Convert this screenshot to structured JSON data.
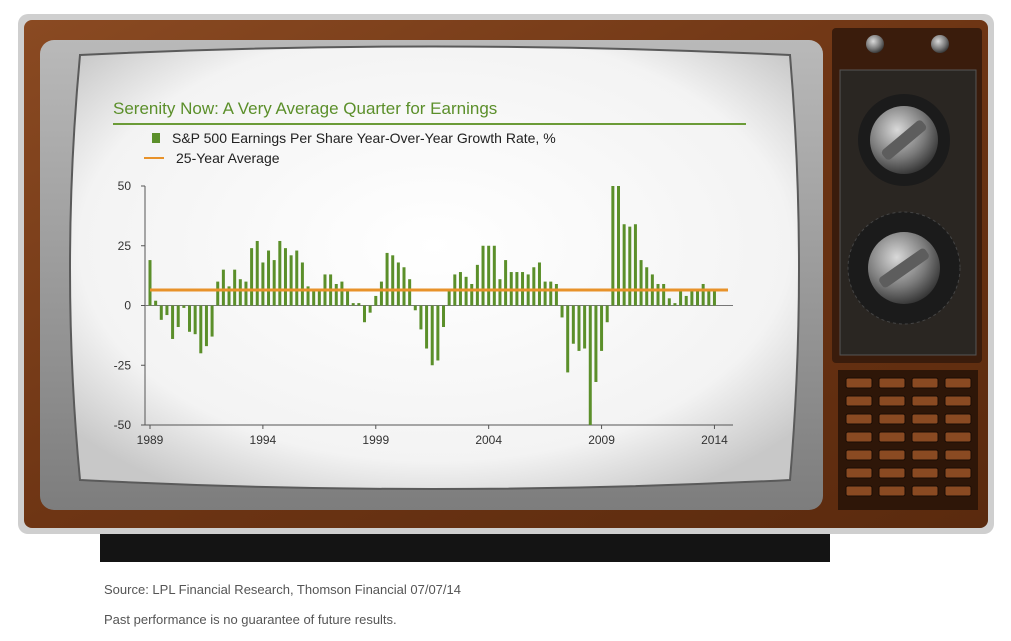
{
  "source_note": "Source: LPL Financial Research, Thomson Financial   07/07/14",
  "disclaimer": "Past performance is no guarantee of future results.",
  "colors": {
    "bar": "#5b8f2a",
    "average": "#e8922a",
    "title": "#5b8f2a",
    "wood": "#7a3d1a"
  },
  "chart_data": {
    "type": "bar",
    "title": "Serenity Now: A Very Average Quarter for Earnings",
    "legend": [
      {
        "label": "S&P 500 Earnings Per Share Year-Over-Year Growth Rate, %",
        "kind": "bar"
      },
      {
        "label": "25-Year Average",
        "kind": "line"
      }
    ],
    "xlabel": "",
    "ylabel": "",
    "ylim": [
      -50,
      50
    ],
    "yticks": [
      50,
      25,
      0,
      -25,
      -50
    ],
    "xticks": [
      1989,
      1994,
      1999,
      2004,
      2009,
      2014
    ],
    "xlim": [
      1989,
      2014.6
    ],
    "grid": false,
    "legend_position": "top-left",
    "series": [
      {
        "name": "S&P 500 Earnings Per Share Year-Over-Year Growth Rate, %",
        "x": [
          1989.0,
          1989.25,
          1989.5,
          1989.75,
          1990.0,
          1990.25,
          1990.5,
          1990.75,
          1991.0,
          1991.25,
          1991.5,
          1991.75,
          1992.0,
          1992.25,
          1992.5,
          1992.75,
          1993.0,
          1993.25,
          1993.5,
          1993.75,
          1994.0,
          1994.25,
          1994.5,
          1994.75,
          1995.0,
          1995.25,
          1995.5,
          1995.75,
          1996.0,
          1996.25,
          1996.5,
          1996.75,
          1997.0,
          1997.25,
          1997.5,
          1997.75,
          1998.0,
          1998.25,
          1998.5,
          1998.75,
          1999.0,
          1999.25,
          1999.5,
          1999.75,
          2000.0,
          2000.25,
          2000.5,
          2000.75,
          2001.0,
          2001.25,
          2001.5,
          2001.75,
          2002.0,
          2002.25,
          2002.5,
          2002.75,
          2003.0,
          2003.25,
          2003.5,
          2003.75,
          2004.0,
          2004.25,
          2004.5,
          2004.75,
          2005.0,
          2005.25,
          2005.5,
          2005.75,
          2006.0,
          2006.25,
          2006.5,
          2006.75,
          2007.0,
          2007.25,
          2007.5,
          2007.75,
          2008.0,
          2008.25,
          2008.5,
          2008.75,
          2009.0,
          2009.25,
          2009.5,
          2009.75,
          2010.0,
          2010.25,
          2010.5,
          2010.75,
          2011.0,
          2011.25,
          2011.5,
          2011.75,
          2012.0,
          2012.25,
          2012.5,
          2012.75,
          2013.0,
          2013.25,
          2013.5,
          2013.75,
          2014.0
        ],
        "values": [
          19,
          2,
          -6,
          -4,
          -14,
          -9,
          -1,
          -11,
          -12,
          -20,
          -17,
          -13,
          10,
          15,
          8,
          15,
          11,
          10,
          24,
          27,
          18,
          23,
          19,
          27,
          24,
          21,
          23,
          18,
          8,
          6,
          7,
          13,
          13,
          9,
          10,
          7,
          1,
          1,
          -7,
          -3,
          4,
          10,
          22,
          21,
          18,
          16,
          11,
          -2,
          -10,
          -18,
          -25,
          -23,
          -9,
          6,
          13,
          14,
          12,
          9,
          17,
          25,
          25,
          25,
          11,
          19,
          14,
          14,
          14,
          13,
          16,
          18,
          10,
          10,
          9,
          -5,
          -28,
          -16,
          -19,
          -18,
          -50,
          -32,
          -19,
          -7,
          50,
          50,
          34,
          33,
          34,
          19,
          16,
          13,
          9,
          9,
          3,
          1,
          7,
          4,
          6,
          6,
          9,
          6,
          6
        ],
        "color": "#5b8f2a"
      },
      {
        "name": "25-Year Average",
        "value": 6.5,
        "color": "#e8922a"
      }
    ]
  }
}
